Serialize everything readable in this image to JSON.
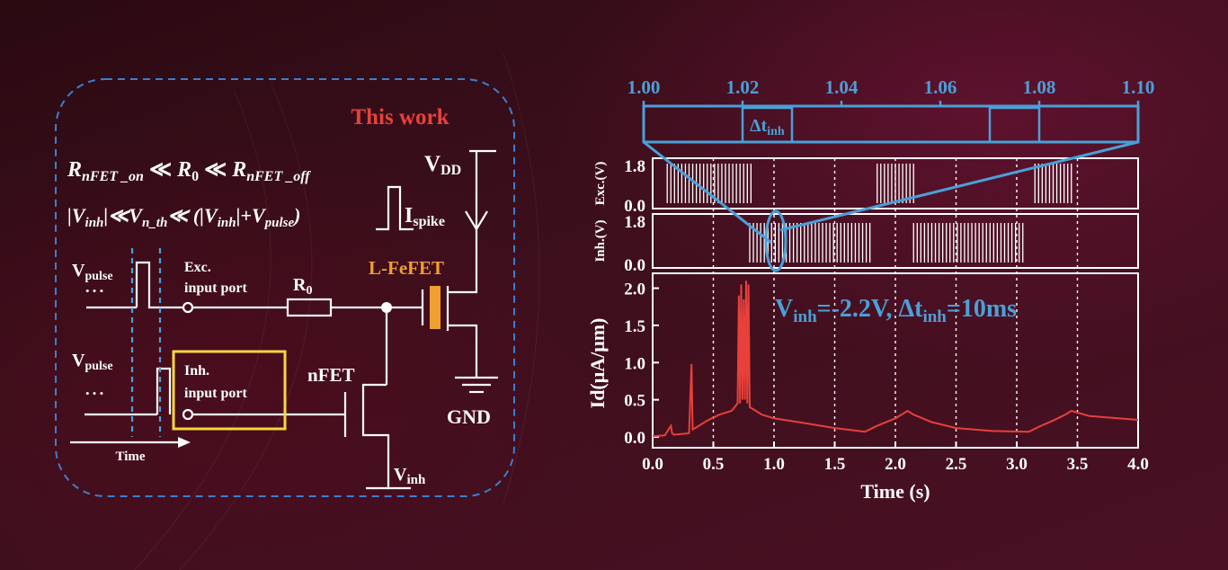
{
  "circuit": {
    "title": "This work",
    "eq1": {
      "r1": "R",
      "r1_sub": "nFET _on",
      "op1": " ≪ ",
      "r2": "R",
      "r2_sub": "0",
      "op2": " ≪ ",
      "r3": "R",
      "r3_sub": "nFET _off"
    },
    "eq2": {
      "a": "|V",
      "a_sub": "inh",
      "b": "|≪V",
      "b_sub": "n_th",
      "c": "≪ (|V",
      "c_sub": "inh",
      "d": "|+V",
      "d_sub": "pulse",
      "e": ")"
    },
    "vdd": {
      "main": "V",
      "sub": "DD"
    },
    "ispike": {
      "main": "I",
      "sub": "spike"
    },
    "lfefet_label": "L-FeFET",
    "nfet_label": "nFET",
    "gnd_label": "GND",
    "vinh": {
      "main": "V",
      "sub": "inh"
    },
    "r0": {
      "main": "R",
      "sub": "0"
    },
    "vpulse_top": {
      "main": "V",
      "sub": "pulse"
    },
    "vpulse_bottom": {
      "main": "V",
      "sub": "pulse"
    },
    "dots": "• • •",
    "exc_port": [
      "Exc.",
      "input port"
    ],
    "inh_port": [
      "Inh.",
      "input port"
    ],
    "time_label": "Time",
    "colors": {
      "dash_border": "#3b7fd0",
      "title": "#e8413c",
      "lfefet": "#f0a030",
      "inh_box": "#f5d63d",
      "wire": "#ffffff"
    }
  },
  "chart_data": {
    "type": "line",
    "xlabel": "Time (s)",
    "ylabel": "Id(μA/μm)",
    "x_ticks": [
      "0.0",
      "0.5",
      "1.0",
      "1.5",
      "2.0",
      "2.5",
      "3.0",
      "3.5",
      "4.0"
    ],
    "xlim": [
      0,
      4
    ],
    "ylim": [
      0,
      2.2
    ],
    "y_ticks": [
      "0.0",
      "0.5",
      "1.0",
      "1.5",
      "2.0"
    ],
    "annotation": {
      "v": "V",
      "v_sub": "inh",
      "mid": "=-2.2V, Δt",
      "t_sub": "inh",
      "end": "=10ms"
    },
    "id_curve": {
      "x": [
        0,
        0.1,
        0.15,
        0.16,
        0.18,
        0.3,
        0.32,
        0.33,
        0.35,
        0.45,
        0.55,
        0.65,
        0.7,
        0.71,
        0.72,
        0.73,
        0.74,
        0.75,
        0.76,
        0.77,
        0.78,
        0.79,
        0.8,
        0.85,
        0.9,
        1.0,
        1.2,
        1.5,
        1.75,
        1.85,
        2.0,
        2.1,
        2.15,
        2.3,
        2.5,
        2.8,
        3.1,
        3.2,
        3.3,
        3.4,
        3.45,
        3.6,
        4.0
      ],
      "y": [
        0.01,
        0.02,
        0.15,
        0.05,
        0.03,
        0.05,
        0.98,
        0.1,
        0.12,
        0.22,
        0.3,
        0.35,
        0.45,
        1.9,
        0.45,
        2.05,
        0.5,
        1.85,
        0.5,
        2.1,
        0.45,
        2.05,
        0.4,
        0.35,
        0.3,
        0.25,
        0.2,
        0.12,
        0.07,
        0.15,
        0.25,
        0.35,
        0.3,
        0.2,
        0.12,
        0.08,
        0.07,
        0.15,
        0.22,
        0.3,
        0.35,
        0.28,
        0.23
      ]
    },
    "exc_panel": {
      "ylabel": "Exc.(V)",
      "y_ticks": [
        "1.8",
        "0.0"
      ],
      "pulse_groups_s": [
        [
          0.12,
          0.82
        ],
        [
          1.85,
          2.15
        ],
        [
          3.15,
          3.45
        ]
      ]
    },
    "inh_panel": {
      "ylabel": "Inh.(V)",
      "y_ticks": [
        "1.8",
        "0.0"
      ],
      "pulse_groups_s": [
        [
          0.8,
          1.8
        ],
        [
          2.15,
          3.05
        ]
      ]
    },
    "zoom": {
      "x_ticks": [
        "1.00",
        "1.02",
        "1.04",
        "1.06",
        "1.08",
        "1.10"
      ],
      "xlim": [
        1.0,
        1.1
      ],
      "pulse_windows_s": [
        [
          1.02,
          1.03
        ],
        [
          1.07,
          1.08
        ]
      ],
      "delta_label": {
        "main": "Δt",
        "sub": "inh"
      }
    },
    "colors": {
      "curve": "#e8403a",
      "zoom": "#4aa0d8",
      "axis": "#ffffff"
    }
  }
}
